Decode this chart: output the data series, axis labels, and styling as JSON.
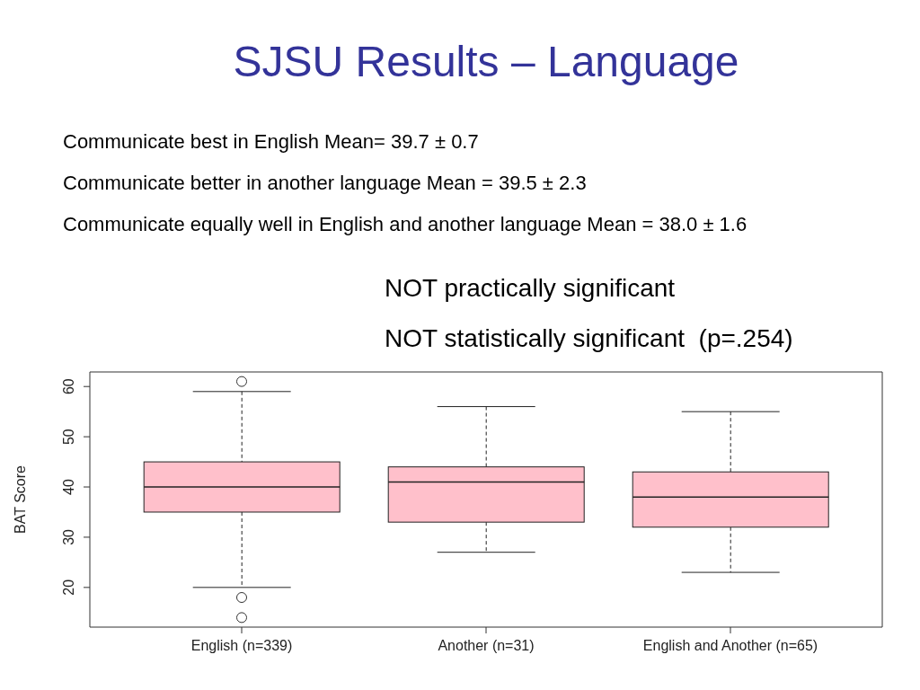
{
  "chart_data": {
    "type": "box",
    "title": "SJSU Results – Language",
    "annotations": [
      "Communicate best in English Mean= 39.7 ± 0.7",
      "Communicate better in another language Mean = 39.5 ± 2.3",
      "Communicate equally well in English and another language Mean = 38.0 ± 1.6",
      "NOT practically significant",
      "NOT statistically significant  (p=.254)"
    ],
    "categories": [
      "English (n=339)",
      "Another (n=31)",
      "English and Another (n=65)"
    ],
    "ylabel": "BAT Score",
    "ylim": [
      12.1,
      62.9
    ],
    "yticks": [
      20,
      30,
      40,
      50,
      60
    ],
    "color": "#ffc0cb",
    "boxes": [
      {
        "low": 20,
        "q1": 35,
        "median": 40,
        "q3": 45,
        "high": 59,
        "outliers": [
          61,
          18,
          14
        ]
      },
      {
        "low": 27,
        "q1": 33,
        "median": 41,
        "q3": 44,
        "high": 56
      },
      {
        "low": 23,
        "q1": 32,
        "median": 38,
        "q3": 43,
        "high": 55
      }
    ]
  }
}
